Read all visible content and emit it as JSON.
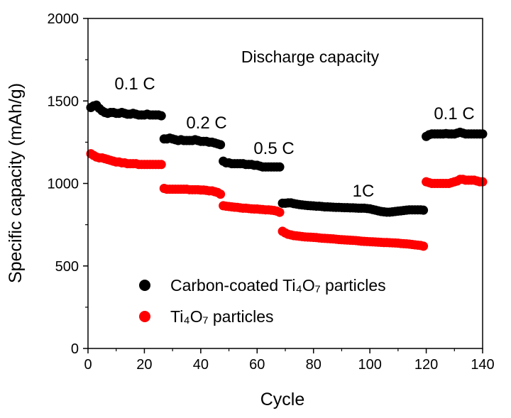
{
  "chart_data": {
    "type": "scatter",
    "title": "Discharge capacity",
    "xlabel": "Cycle",
    "ylabel": "Specific capacity (mAh/g)",
    "xlim": [
      0,
      140
    ],
    "ylim": [
      0,
      2000
    ],
    "xticks": [
      "0",
      "20",
      "40",
      "60",
      "80",
      "100",
      "120",
      "140"
    ],
    "yticks": [
      "0",
      "500",
      "1000",
      "1500",
      "2000"
    ],
    "grid": false,
    "legend_position": "bottom-left",
    "annotations": [
      "0.1 C",
      "0.2 C",
      "0.5 C",
      "1C",
      "0.1 C"
    ],
    "series": [
      {
        "name": "Carbon-coated Ti₄O₇ particles",
        "color": "#000000",
        "values": [
          1460,
          1470,
          1475,
          1455,
          1440,
          1430,
          1425,
          1430,
          1430,
          1425,
          1425,
          1430,
          1425,
          1420,
          1420,
          1425,
          1420,
          1415,
          1415,
          1415,
          1420,
          1415,
          1415,
          1415,
          1415,
          1410,
          1270,
          1270,
          1275,
          1270,
          1265,
          1260,
          1265,
          1260,
          1260,
          1260,
          1260,
          1265,
          1260,
          1255,
          1255,
          1255,
          1250,
          1250,
          1245,
          1240,
          1235,
          1135,
          1125,
          1125,
          1120,
          1120,
          1120,
          1120,
          1120,
          1115,
          1115,
          1115,
          1110,
          1110,
          1105,
          1100,
          1100,
          1100,
          1100,
          1100,
          1100,
          1100,
          880,
          880,
          882,
          882,
          878,
          875,
          872,
          870,
          868,
          866,
          865,
          864,
          862,
          862,
          860,
          858,
          858,
          857,
          856,
          855,
          855,
          854,
          853,
          853,
          852,
          852,
          851,
          850,
          850,
          850,
          848,
          846,
          842,
          838,
          834,
          830,
          828,
          826,
          826,
          828,
          830,
          832,
          834,
          836,
          838,
          840,
          840,
          840,
          840,
          840,
          838,
          1285,
          1295,
          1300,
          1300,
          1300,
          1300,
          1300,
          1302,
          1300,
          1300,
          1300,
          1305,
          1310,
          1305,
          1300,
          1300,
          1300,
          1300,
          1300,
          1300,
          1300
        ]
      },
      {
        "name": "Ti₄O₇ particles",
        "color": "#ff0000",
        "values": [
          1180,
          1170,
          1160,
          1155,
          1155,
          1150,
          1145,
          1140,
          1135,
          1130,
          1130,
          1125,
          1125,
          1120,
          1120,
          1120,
          1120,
          1115,
          1115,
          1115,
          1115,
          1115,
          1115,
          1115,
          1115,
          1115,
          970,
          965,
          965,
          965,
          965,
          965,
          965,
          965,
          965,
          962,
          962,
          962,
          962,
          960,
          960,
          958,
          955,
          955,
          950,
          945,
          935,
          865,
          862,
          860,
          858,
          856,
          855,
          852,
          850,
          850,
          848,
          846,
          845,
          845,
          843,
          842,
          840,
          840,
          838,
          836,
          832,
          825,
          710,
          700,
          692,
          688,
          684,
          682,
          680,
          678,
          676,
          675,
          674,
          673,
          672,
          670,
          668,
          667,
          666,
          665,
          664,
          662,
          660,
          659,
          658,
          657,
          656,
          655,
          654,
          652,
          650,
          649,
          648,
          647,
          646,
          645,
          644,
          643,
          642,
          642,
          641,
          640,
          639,
          638,
          636,
          635,
          634,
          632,
          630,
          628,
          626,
          624,
          620,
          1010,
          1005,
          1000,
          1000,
          1000,
          1000,
          1000,
          1000,
          1000,
          1005,
          1010,
          1015,
          1025,
          1025,
          1020,
          1020,
          1020,
          1020,
          1015,
          1010,
          1010
        ]
      }
    ]
  }
}
